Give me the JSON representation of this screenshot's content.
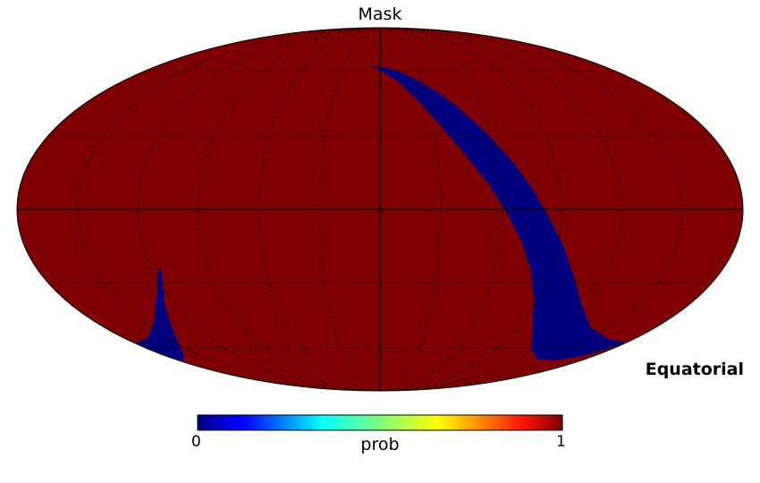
{
  "chart_data": {
    "type": "heatmap",
    "title": "Mask",
    "projection": "mollweide",
    "coordinate_system": "Equatorial",
    "colormap": "jet",
    "colorbar": {
      "label": "prob",
      "min_label": "0",
      "max_label": "1",
      "range": [
        0,
        1
      ]
    },
    "values_present": [
      0,
      1
    ],
    "background_value": 1,
    "masked_value": 0,
    "graticule": true,
    "colors": {
      "high": "#7f0000",
      "low": "#00007f",
      "grid": "#000000"
    }
  }
}
